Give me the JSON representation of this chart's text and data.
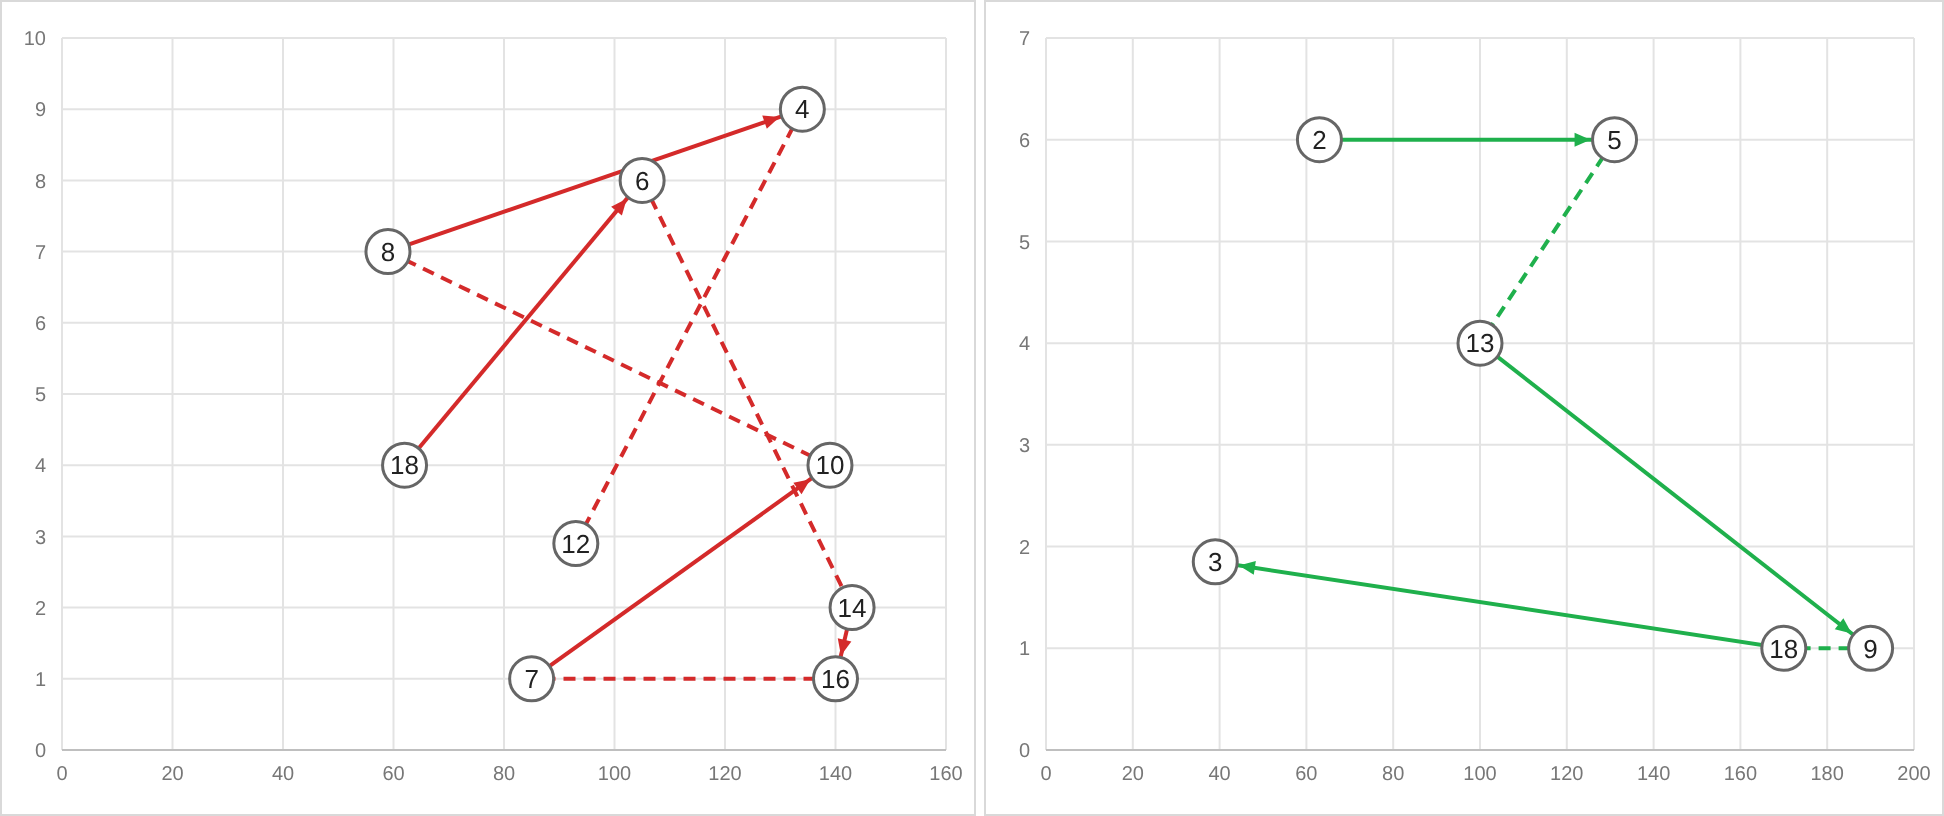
{
  "chart_data": [
    {
      "type": "line",
      "xlim": [
        0,
        160
      ],
      "xticks": [
        0,
        20,
        40,
        60,
        80,
        100,
        120,
        140,
        160
      ],
      "ylim": [
        0,
        10
      ],
      "yticks": [
        0,
        1,
        2,
        3,
        4,
        5,
        6,
        7,
        8,
        9,
        10
      ],
      "grid": true,
      "series": [
        {
          "type": "line",
          "color": "#d42a2a",
          "line_style": "solid",
          "x": [
            62,
            105
          ],
          "values": [
            4,
            8
          ]
        },
        {
          "type": "line",
          "color": "#d42a2a",
          "line_style": "dashed",
          "x": [
            105,
            143
          ],
          "values": [
            8,
            2
          ]
        },
        {
          "type": "line",
          "color": "#d42a2a",
          "line_style": "solid",
          "x": [
            143,
            140
          ],
          "values": [
            2,
            1
          ]
        },
        {
          "type": "line",
          "color": "#d42a2a",
          "line_style": "dashed",
          "x": [
            140,
            85
          ],
          "values": [
            1,
            1
          ]
        },
        {
          "type": "line",
          "color": "#d42a2a",
          "line_style": "solid",
          "x": [
            85,
            139
          ],
          "values": [
            1,
            4
          ]
        },
        {
          "type": "line",
          "color": "#d42a2a",
          "line_style": "dashed",
          "x": [
            139,
            59
          ],
          "values": [
            4,
            7
          ]
        },
        {
          "type": "line",
          "color": "#d42a2a",
          "line_style": "solid",
          "x": [
            59,
            134
          ],
          "values": [
            7,
            9
          ]
        },
        {
          "type": "line",
          "color": "#d42a2a",
          "line_style": "dashed",
          "x": [
            134,
            93
          ],
          "values": [
            9,
            2.9
          ]
        },
        {
          "type": "scatter",
          "color": "#666666",
          "marker": "circle",
          "x": [
            62,
            105,
            143,
            140,
            85,
            139,
            59,
            134,
            93
          ],
          "values": [
            4,
            8,
            2,
            1,
            1,
            4,
            7,
            9,
            2.9
          ]
        }
      ],
      "annotations": [
        {
          "text": "18",
          "x": 62,
          "y": 4
        },
        {
          "text": "6",
          "x": 105,
          "y": 8
        },
        {
          "text": "14",
          "x": 143,
          "y": 2
        },
        {
          "text": "16",
          "x": 140,
          "y": 1
        },
        {
          "text": "7",
          "x": 85,
          "y": 1
        },
        {
          "text": "10",
          "x": 139,
          "y": 4
        },
        {
          "text": "8",
          "x": 59,
          "y": 7
        },
        {
          "text": "4",
          "x": 134,
          "y": 9
        },
        {
          "text": "12",
          "x": 93,
          "y": 2.9
        }
      ]
    },
    {
      "type": "line",
      "xlim": [
        0,
        200
      ],
      "xticks": [
        0,
        20,
        40,
        60,
        80,
        100,
        120,
        140,
        160,
        180,
        200
      ],
      "ylim": [
        0,
        7
      ],
      "yticks": [
        0,
        1,
        2,
        3,
        4,
        5,
        6,
        7
      ],
      "grid": true,
      "series": [
        {
          "type": "line",
          "color": "#1fb04c",
          "line_style": "solid",
          "x": [
            63,
            131
          ],
          "values": [
            6,
            6
          ]
        },
        {
          "type": "line",
          "color": "#1fb04c",
          "line_style": "dashed",
          "x": [
            131,
            100
          ],
          "values": [
            6,
            4
          ]
        },
        {
          "type": "line",
          "color": "#1fb04c",
          "line_style": "solid",
          "x": [
            100,
            190
          ],
          "values": [
            4,
            1
          ]
        },
        {
          "type": "line",
          "color": "#1fb04c",
          "line_style": "dashed",
          "x": [
            190,
            170
          ],
          "values": [
            1,
            1
          ]
        },
        {
          "type": "line",
          "color": "#1fb04c",
          "line_style": "solid",
          "x": [
            170,
            39
          ],
          "values": [
            1,
            1.85
          ]
        },
        {
          "type": "scatter",
          "color": "#666666",
          "marker": "circle",
          "x": [
            63,
            131,
            100,
            190,
            170,
            39
          ],
          "values": [
            6,
            6,
            4,
            1,
            1,
            1.85
          ]
        }
      ],
      "annotations": [
        {
          "text": "2",
          "x": 63,
          "y": 6
        },
        {
          "text": "5",
          "x": 131,
          "y": 6
        },
        {
          "text": "13",
          "x": 100,
          "y": 4
        },
        {
          "text": "9",
          "x": 190,
          "y": 1
        },
        {
          "text": "18",
          "x": 170,
          "y": 1
        },
        {
          "text": "3",
          "x": 39,
          "y": 1.85
        }
      ]
    }
  ]
}
